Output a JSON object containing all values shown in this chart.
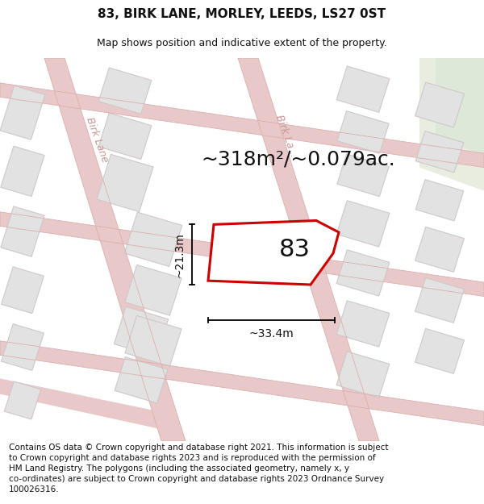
{
  "title": "83, BIRK LANE, MORLEY, LEEDS, LS27 0ST",
  "subtitle": "Map shows position and indicative extent of the property.",
  "area_text": "~318m²/~0.079ac.",
  "label_83": "83",
  "dim_width": "~33.4m",
  "dim_height": "~21.3m",
  "footer": "Contains OS data © Crown copyright and database right 2021. This information is subject to Crown copyright and database rights 2023 and is reproduced with the permission of HM Land Registry. The polygons (including the associated geometry, namely x, y co-ordinates) are subject to Crown copyright and database rights 2023 Ordnance Survey 100026316.",
  "bg_map": "#f2f0f0",
  "road_color": "#e8c8c8",
  "road_outline": "#deb8b8",
  "building_face": "#e2e2e2",
  "building_edge": "#d0c8c8",
  "highlight_color": "#cc0000",
  "text_color": "#111111",
  "road_label_color": "#c89898",
  "green_patch": "#e8ede0",
  "title_fontsize": 11,
  "subtitle_fontsize": 9,
  "area_fontsize": 18,
  "label_fontsize": 22,
  "dim_fontsize": 10,
  "footer_fontsize": 7.5
}
